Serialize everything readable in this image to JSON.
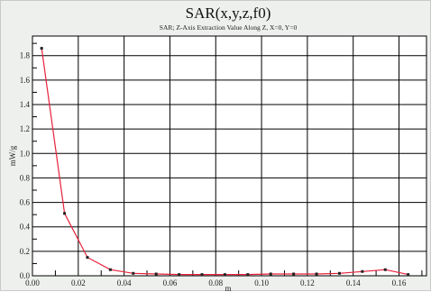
{
  "chart_data": {
    "type": "line",
    "title": "SAR(x,y,z,f0)",
    "subtitle": "SAR; Z-Axis Extraction Value Along Z, X=0, Y=0",
    "xlabel": "m",
    "ylabel": "mW/g",
    "xlim": [
      0,
      0.172
    ],
    "ylim": [
      0,
      1.96
    ],
    "x_ticks": [
      "0.00",
      "0.02",
      "0.04",
      "0.06",
      "0.08",
      "0.10",
      "0.12",
      "0.14",
      "0.16"
    ],
    "y_ticks": [
      "0.0",
      "0.2",
      "0.4",
      "0.6",
      "0.8",
      "1.0",
      "1.2",
      "1.4",
      "1.6",
      "1.8"
    ],
    "grid": true,
    "series": [
      {
        "color": "#e8203a",
        "x": [
          0.004,
          0.014,
          0.024,
          0.034,
          0.044,
          0.054,
          0.064,
          0.074,
          0.084,
          0.094,
          0.104,
          0.114,
          0.124,
          0.134,
          0.144,
          0.154,
          0.164
        ],
        "y": [
          1.86,
          0.51,
          0.15,
          0.05,
          0.02,
          0.015,
          0.01,
          0.01,
          0.01,
          0.01,
          0.015,
          0.015,
          0.015,
          0.02,
          0.035,
          0.05,
          0.01
        ]
      }
    ]
  }
}
